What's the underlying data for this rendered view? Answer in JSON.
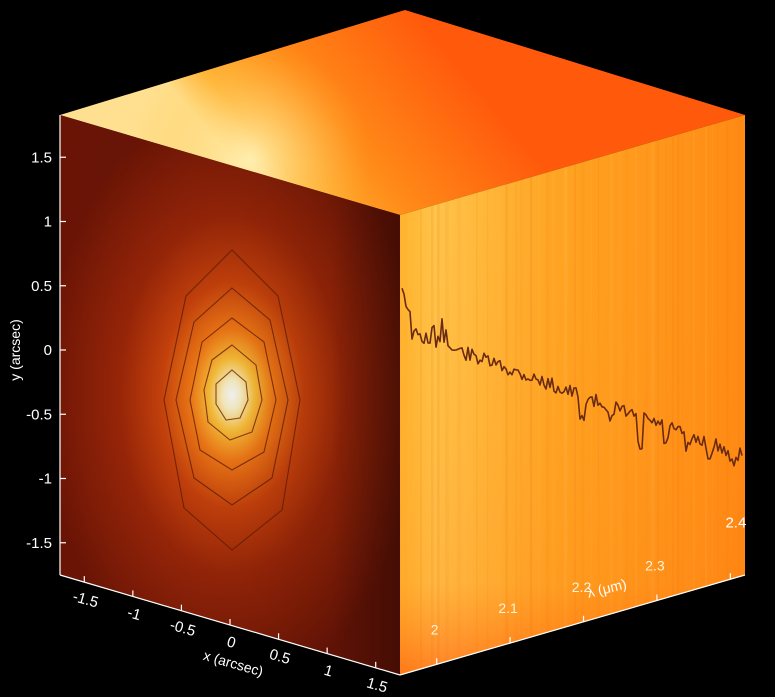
{
  "axes": {
    "y": {
      "title": "y (arcsec)",
      "ticks": [
        {
          "value": 1.5,
          "label": "1.5"
        },
        {
          "value": 1,
          "label": "1"
        },
        {
          "value": 0.5,
          "label": "0.5"
        },
        {
          "value": 0,
          "label": "0"
        },
        {
          "value": -0.5,
          "label": "-0.5"
        },
        {
          "value": -1,
          "label": "-1"
        },
        {
          "value": -1.5,
          "label": "-1.5"
        }
      ]
    },
    "x": {
      "title": "x (arcsec)",
      "ticks": [
        {
          "value": -1.5,
          "label": "-1.5"
        },
        {
          "value": -1,
          "label": "-1"
        },
        {
          "value": -0.5,
          "label": "-0.5"
        },
        {
          "value": 0,
          "label": "0"
        },
        {
          "value": 0.5,
          "label": "0.5"
        },
        {
          "value": 1,
          "label": "1"
        },
        {
          "value": 1.5,
          "label": "1.5"
        }
      ]
    },
    "wavelength": {
      "title": "λ (μm)",
      "ticks": [
        {
          "value": 2.0,
          "label": "2"
        },
        {
          "value": 2.1,
          "label": "2.1"
        },
        {
          "value": 2.2,
          "label": "2.2"
        },
        {
          "value": 2.3,
          "label": "2.3"
        },
        {
          "value": 2.4,
          "label": "2.4"
        }
      ]
    }
  },
  "colors": {
    "background": "#000000",
    "front_face_core": "#ffffff",
    "front_face_mid": "#ff9a1e",
    "front_face_edge": "#6e1608",
    "right_face": "#ffa01c",
    "top_face": "#ff7a12",
    "spectrum_line": "#6a2a10"
  }
}
